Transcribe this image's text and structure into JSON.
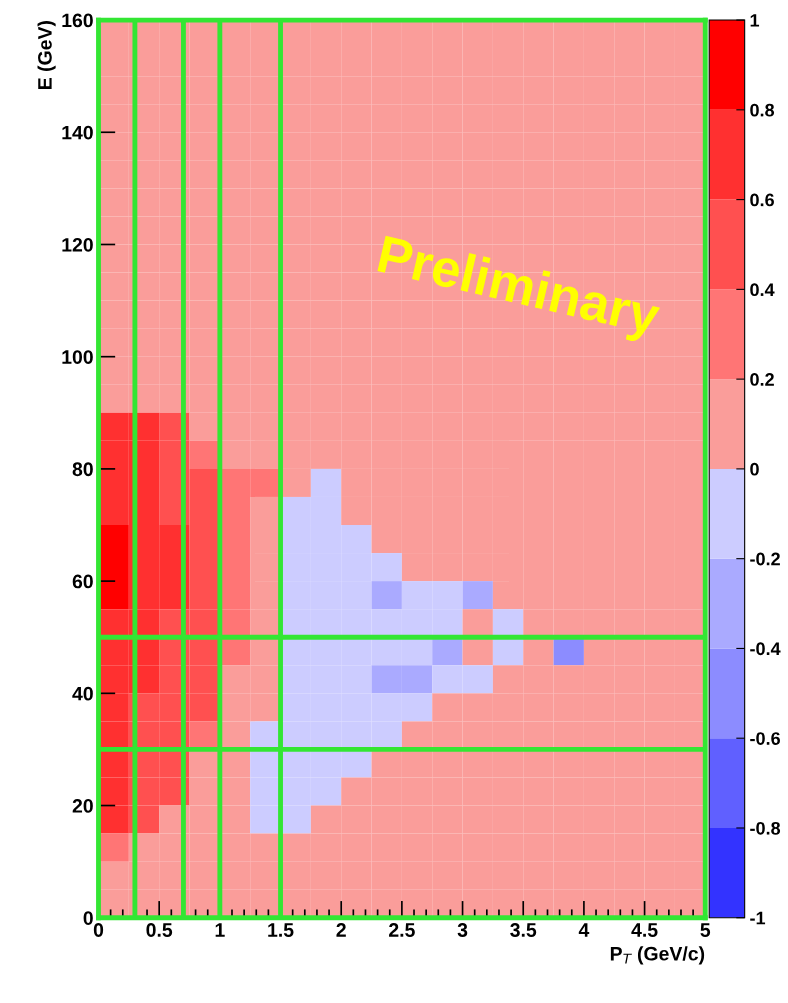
{
  "chart_data": {
    "type": "heatmap",
    "xlabel": "P$_{T}$ (GeV/c)",
    "ylabel": "E (GeV)",
    "annotations": [
      "Preliminary"
    ],
    "xlim": [
      0,
      5
    ],
    "ylim": [
      0,
      160
    ],
    "xticks": [
      0,
      0.5,
      1,
      1.5,
      2,
      2.5,
      3,
      3.5,
      4,
      4.5,
      5
    ],
    "yticks": [
      0,
      20,
      40,
      60,
      80,
      100,
      120,
      140,
      160
    ],
    "clim": [
      -1,
      1
    ],
    "cticks": [
      -1,
      -0.8,
      -0.6,
      -0.4,
      -0.2,
      0,
      0.2,
      0.4,
      0.6,
      0.8,
      1
    ],
    "colors": [
      "#3333ff",
      "#6060ff",
      "#8c8cff",
      "#aaaaff",
      "#ccccff",
      "#fa9d9a",
      "#ff7575",
      "#ff5050",
      "#ff3030",
      "#ff0000"
    ],
    "ref_lines": [
      {
        "axis": "x",
        "value": 0.3,
        "color": "#33e633"
      },
      {
        "axis": "x",
        "value": 0.7,
        "color": "#33e633"
      },
      {
        "axis": "x",
        "value": 1.0,
        "color": "#33e633"
      },
      {
        "axis": "x",
        "value": 1.5,
        "color": "#33e633"
      },
      {
        "axis": "y",
        "value": 30,
        "color": "#33e633"
      },
      {
        "axis": "y",
        "value": 50,
        "color": "#33e633"
      }
    ],
    "x": [
      0.125,
      0.375,
      0.625,
      0.875,
      1.125,
      1.375,
      1.625,
      1.875,
      2.125,
      2.375,
      2.625,
      2.875,
      3.125,
      3.375,
      3.625,
      3.875,
      4.125,
      4.375,
      4.625,
      4.875
    ],
    "y": [
      157.5,
      152.5,
      147.5,
      142.5,
      137.5,
      132.5,
      127.5,
      122.5,
      117.5,
      112.5,
      107.5,
      102.5,
      97.5,
      92.5,
      87.5,
      82.5,
      77.5,
      72.5,
      67.5,
      62.5,
      57.5,
      52.5,
      47.5,
      42.5,
      37.5,
      32.5,
      27.5,
      22.5,
      17.5,
      12.5,
      7.5,
      2.5
    ],
    "cells": [
      [
        0.1,
        0.1,
        0.1,
        0.1,
        0.1,
        0.1,
        0.1,
        0.1,
        0.1,
        0.1,
        0.1,
        0.1,
        0.1,
        0.1,
        0.1,
        0.1,
        0.1,
        0.1,
        0.1,
        0.1
      ],
      [
        0.1,
        0.1,
        0.1,
        0.1,
        0.1,
        0.1,
        0.1,
        0.1,
        0.1,
        0.1,
        0.1,
        0.1,
        0.1,
        0.1,
        0.1,
        0.1,
        0.1,
        0.1,
        0.1,
        0.1
      ],
      [
        0.1,
        0.1,
        0.1,
        0.1,
        0.1,
        0.1,
        0.1,
        0.1,
        0.1,
        0.1,
        0.1,
        0.1,
        0.1,
        0.1,
        0.1,
        0.1,
        0.1,
        0.1,
        0.1,
        0.1
      ],
      [
        0.1,
        0.1,
        0.1,
        0.1,
        0.1,
        0.1,
        0.1,
        0.1,
        0.1,
        0.1,
        0.1,
        0.1,
        0.1,
        0.1,
        0.1,
        0.1,
        0.1,
        0.1,
        0.1,
        0.1
      ],
      [
        0.1,
        0.1,
        0.1,
        0.1,
        0.1,
        0.1,
        0.1,
        0.1,
        0.1,
        0.1,
        0.1,
        0.1,
        0.1,
        0.1,
        0.1,
        0.1,
        0.1,
        0.1,
        0.1,
        0.1
      ],
      [
        0.1,
        0.1,
        0.1,
        0.1,
        0.1,
        0.1,
        0.1,
        0.1,
        0.1,
        0.1,
        0.1,
        0.1,
        0.1,
        0.1,
        0.1,
        0.1,
        0.1,
        0.1,
        0.1,
        0.1
      ],
      [
        0.1,
        0.1,
        0.1,
        0.1,
        0.1,
        0.1,
        0.1,
        0.1,
        0.1,
        0.1,
        0.1,
        0.1,
        0.1,
        0.1,
        0.1,
        0.1,
        0.1,
        0.1,
        0.1,
        0.1
      ],
      [
        0.1,
        0.1,
        0.1,
        0.1,
        0.1,
        0.1,
        0.1,
        0.1,
        0.1,
        0.1,
        0.1,
        0.1,
        0.1,
        0.1,
        0.1,
        0.1,
        0.1,
        0.1,
        0.1,
        0.1
      ],
      [
        0.1,
        0.1,
        0.1,
        0.1,
        0.1,
        0.1,
        0.1,
        0.1,
        0.1,
        0.1,
        0.1,
        0.1,
        0.1,
        0.1,
        0.1,
        0.1,
        0.1,
        0.1,
        0.1,
        0.1
      ],
      [
        0.1,
        0.1,
        0.1,
        0.1,
        0.1,
        0.1,
        0.1,
        0.1,
        0.1,
        0.1,
        0.1,
        0.1,
        0.1,
        0.1,
        0.1,
        0.1,
        0.1,
        0.1,
        0.1,
        0.1
      ],
      [
        0.1,
        0.1,
        0.1,
        0.1,
        0.1,
        0.1,
        0.1,
        0.1,
        0.1,
        0.1,
        0.1,
        0.1,
        0.1,
        0.1,
        0.1,
        0.1,
        0.1,
        0.1,
        0.1,
        0.1
      ],
      [
        0.1,
        0.1,
        0.1,
        0.1,
        0.1,
        0.1,
        0.1,
        0.1,
        0.1,
        0.1,
        0.1,
        0.1,
        0.1,
        0.1,
        0.1,
        0.1,
        0.1,
        0.1,
        0.1,
        0.1
      ],
      [
        0.1,
        0.1,
        0.1,
        0.1,
        0.1,
        0.1,
        0.1,
        0.1,
        0.1,
        0.1,
        0.1,
        0.1,
        0.1,
        0.1,
        0.1,
        0.1,
        0.1,
        0.1,
        0.1,
        0.1
      ],
      [
        0.1,
        0.1,
        0.1,
        0.1,
        0.1,
        0.1,
        0.1,
        0.1,
        0.1,
        0.1,
        0.1,
        0.1,
        0.1,
        0.1,
        0.1,
        0.1,
        0.1,
        0.1,
        0.1,
        0.1
      ],
      [
        0.7,
        0.7,
        0.5,
        0.1,
        0.1,
        0.1,
        0.1,
        0.1,
        0.1,
        0.1,
        0.1,
        0.1,
        0.1,
        0.1,
        0.1,
        0.1,
        0.1,
        0.1,
        0.1,
        0.1
      ],
      [
        0.7,
        0.7,
        0.5,
        0.3,
        0.1,
        0.1,
        0.1,
        0.1,
        0.1,
        0.1,
        0.1,
        0.1,
        0.1,
        0.1,
        0.1,
        0.1,
        0.1,
        0.1,
        0.1,
        0.1
      ],
      [
        0.7,
        0.7,
        0.5,
        0.5,
        0.3,
        0.3,
        0.1,
        -0.1,
        0.1,
        0.1,
        0.1,
        0.1,
        0.1,
        0.1,
        0.1,
        0.1,
        0.1,
        0.1,
        0.1,
        0.1
      ],
      [
        0.7,
        0.7,
        0.5,
        0.5,
        0.3,
        0.1,
        -0.1,
        -0.1,
        0.1,
        0.1,
        0.1,
        0.1,
        0.1,
        0.1,
        0.1,
        0.1,
        0.1,
        0.1,
        0.1,
        0.1
      ],
      [
        0.9,
        0.7,
        0.7,
        0.5,
        0.3,
        0.1,
        -0.1,
        -0.1,
        -0.1,
        0.1,
        0.1,
        0.1,
        0.1,
        0.1,
        0.1,
        0.1,
        0.1,
        0.1,
        0.1,
        0.1
      ],
      [
        0.9,
        0.7,
        0.7,
        0.5,
        0.3,
        0.1,
        -0.1,
        -0.1,
        -0.1,
        -0.1,
        0.1,
        0.1,
        0.1,
        0.1,
        0.1,
        0.1,
        0.1,
        0.1,
        0.1,
        0.1
      ],
      [
        0.9,
        0.7,
        0.7,
        0.5,
        0.3,
        0.1,
        -0.1,
        -0.1,
        -0.1,
        -0.3,
        -0.1,
        -0.1,
        -0.3,
        0.1,
        0.1,
        0.1,
        0.1,
        0.1,
        0.1,
        0.1
      ],
      [
        0.7,
        0.7,
        0.5,
        0.5,
        0.3,
        0.1,
        -0.1,
        -0.1,
        -0.1,
        -0.1,
        -0.1,
        -0.1,
        0.1,
        -0.1,
        0.1,
        0.1,
        0.1,
        0.1,
        0.1,
        0.1
      ],
      [
        0.7,
        0.7,
        0.5,
        0.5,
        0.3,
        0.1,
        -0.1,
        -0.1,
        -0.1,
        -0.1,
        -0.1,
        -0.3,
        0.1,
        -0.1,
        0.1,
        -0.5,
        0.1,
        0.1,
        0.1,
        0.1
      ],
      [
        0.7,
        0.7,
        0.5,
        0.5,
        0.1,
        0.1,
        -0.1,
        -0.1,
        -0.1,
        -0.3,
        -0.3,
        -0.1,
        -0.1,
        0.1,
        0.1,
        0.1,
        0.1,
        0.1,
        0.1,
        0.1
      ],
      [
        0.7,
        0.5,
        0.5,
        0.5,
        0.1,
        0.1,
        -0.1,
        -0.1,
        -0.1,
        -0.1,
        -0.1,
        0.1,
        0.1,
        0.1,
        0.1,
        0.1,
        0.1,
        0.1,
        0.1,
        0.1
      ],
      [
        0.7,
        0.5,
        0.5,
        0.3,
        0.1,
        -0.1,
        -0.1,
        -0.1,
        -0.1,
        -0.1,
        0.1,
        0.1,
        0.1,
        0.1,
        0.1,
        0.1,
        0.1,
        0.1,
        0.1,
        0.1
      ],
      [
        0.7,
        0.5,
        0.5,
        0.1,
        0.1,
        -0.1,
        -0.1,
        -0.1,
        -0.1,
        0.1,
        0.1,
        0.1,
        0.1,
        0.1,
        0.1,
        0.1,
        0.1,
        0.1,
        0.1,
        0.1
      ],
      [
        0.7,
        0.5,
        0.5,
        0.1,
        0.1,
        -0.1,
        -0.1,
        -0.1,
        0.1,
        0.1,
        0.1,
        0.1,
        0.1,
        0.1,
        0.1,
        0.1,
        0.1,
        0.1,
        0.1,
        0.1
      ],
      [
        0.7,
        0.5,
        0.1,
        0.1,
        0.1,
        -0.1,
        -0.1,
        0.1,
        0.1,
        0.1,
        0.1,
        0.1,
        0.1,
        0.1,
        0.1,
        0.1,
        0.1,
        0.1,
        0.1,
        0.1
      ],
      [
        0.3,
        0.1,
        0.1,
        0.1,
        0.1,
        0.1,
        0.1,
        0.1,
        0.1,
        0.1,
        0.1,
        0.1,
        0.1,
        0.1,
        0.1,
        0.1,
        0.1,
        0.1,
        0.1,
        0.1
      ],
      [
        0.1,
        0.1,
        0.1,
        0.1,
        0.1,
        0.1,
        0.1,
        0.1,
        0.1,
        0.1,
        0.1,
        0.1,
        0.1,
        0.1,
        0.1,
        0.1,
        0.1,
        0.1,
        0.1,
        0.1
      ],
      [
        0.1,
        0.1,
        0.1,
        0.1,
        0.1,
        0.1,
        0.1,
        0.1,
        0.1,
        0.1,
        0.1,
        0.1,
        0.1,
        0.1,
        0.1,
        0.1,
        0.1,
        0.1,
        0.1,
        0.1
      ]
    ]
  }
}
